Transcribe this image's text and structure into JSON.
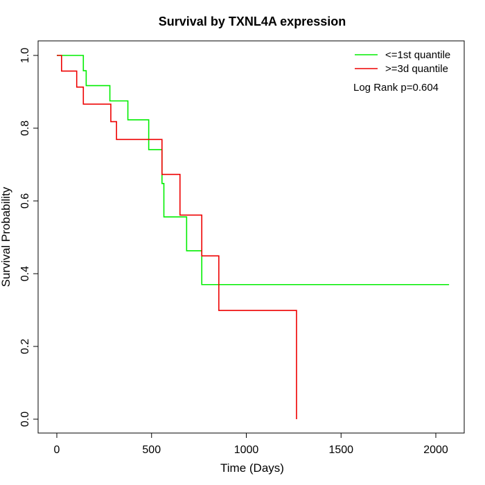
{
  "chart_data": {
    "type": "line",
    "title": "Survival by TXNL4A expression",
    "xlabel": "Time (Days)",
    "ylabel": "Survival Probability",
    "xlim": [
      0,
      2070
    ],
    "ylim": [
      0,
      1
    ],
    "x_ticks": [
      0,
      500,
      1000,
      1500,
      2000
    ],
    "x_tick_labels": [
      "0",
      "500",
      "1000",
      "1500",
      "2000"
    ],
    "y_ticks": [
      0,
      0.2,
      0.4,
      0.6,
      0.8,
      1.0
    ],
    "y_tick_labels": [
      "0.0",
      "0.2",
      "0.4",
      "0.6",
      "0.8",
      "1.0"
    ],
    "grid": false,
    "legend_position": "top-right",
    "annotation": "Log Rank p=0.604",
    "series": [
      {
        "name": "<=1st quantile",
        "color": "#00ee00",
        "steps": [
          [
            0,
            1.0
          ],
          [
            140,
            0.958
          ],
          [
            155,
            0.917
          ],
          [
            280,
            0.875
          ],
          [
            375,
            0.823
          ],
          [
            485,
            0.741
          ],
          [
            555,
            0.648
          ],
          [
            565,
            0.556
          ],
          [
            685,
            0.463
          ],
          [
            765,
            0.37
          ],
          [
            2070,
            0.37
          ]
        ]
      },
      {
        "name": ">=3d quantile",
        "color": "#ee0000",
        "steps": [
          [
            0,
            1.0
          ],
          [
            25,
            0.957
          ],
          [
            105,
            0.913
          ],
          [
            140,
            0.866
          ],
          [
            285,
            0.818
          ],
          [
            315,
            0.769
          ],
          [
            555,
            0.673
          ],
          [
            650,
            0.561
          ],
          [
            765,
            0.449
          ],
          [
            855,
            0.299
          ],
          [
            1265,
            0.0
          ]
        ]
      }
    ]
  }
}
